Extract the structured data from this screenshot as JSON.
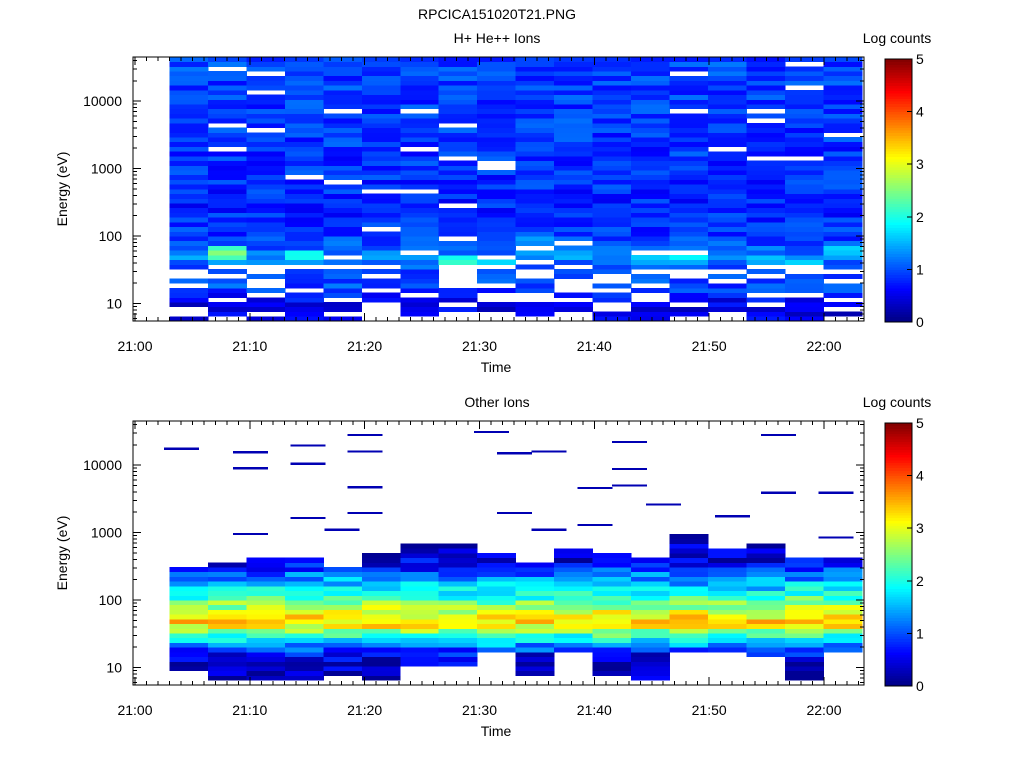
{
  "figure_title": "RPCICA151020T21.PNG",
  "chart_data": [
    {
      "type": "heatmap",
      "title": "H+ He++ Ions",
      "xlabel": "Time",
      "ylabel": "Energy (eV)",
      "x_ticks": [
        "21:00",
        "21:10",
        "21:20",
        "21:30",
        "21:40",
        "21:50",
        "22:00"
      ],
      "x_range": [
        "21:00",
        "22:03"
      ],
      "y_scale": "log",
      "y_ticks": [
        "10",
        "100",
        "1000",
        "10000"
      ],
      "y_range": [
        5.5,
        45000
      ],
      "colorbar": {
        "label": "Log counts",
        "ticks": [
          "0",
          "1",
          "2",
          "3",
          "4",
          "5"
        ],
        "range": [
          0,
          5
        ]
      },
      "grid": false,
      "seed": 7,
      "profile": [
        [
          5,
          0.5
        ],
        [
          10,
          0.5
        ],
        [
          15,
          0.9
        ],
        [
          20,
          1.0
        ],
        [
          25,
          1.0
        ],
        [
          35,
          1.05
        ],
        [
          45,
          1.3
        ],
        [
          60,
          1.15
        ],
        [
          80,
          1.0
        ],
        [
          120,
          0.85
        ],
        [
          300,
          0.8
        ],
        [
          1000,
          0.85
        ],
        [
          5000,
          0.9
        ],
        [
          45000,
          0.95
        ]
      ],
      "hotspots": [
        {
          "time": "21:08",
          "energy": 55,
          "level": 2.4
        },
        {
          "time": "21:14",
          "energy": 50,
          "level": 1.9
        },
        {
          "time": "21:30",
          "energy": 42,
          "level": 2.0
        },
        {
          "time": "21:36",
          "energy": 80,
          "level": 1.6
        },
        {
          "time": "21:46",
          "energy": 50,
          "level": 1.9
        },
        {
          "time": "21:56",
          "energy": 45,
          "level": 1.6
        },
        {
          "time": "22:01",
          "energy": 60,
          "level": 1.7
        }
      ],
      "gap_fraction": 0.05,
      "low_energy_gap_fraction": 0.35,
      "sparse": false
    },
    {
      "type": "heatmap",
      "title": "Other Ions",
      "xlabel": "Time",
      "ylabel": "Energy (eV)",
      "x_ticks": [
        "21:00",
        "21:10",
        "21:20",
        "21:30",
        "21:40",
        "21:50",
        "22:00"
      ],
      "x_range": [
        "21:00",
        "22:03"
      ],
      "y_scale": "log",
      "y_ticks": [
        "10",
        "100",
        "1000",
        "10000"
      ],
      "y_range": [
        5.5,
        45000
      ],
      "colorbar": {
        "label": "Log counts",
        "ticks": [
          "0",
          "1",
          "2",
          "3",
          "4",
          "5"
        ],
        "range": [
          0,
          5
        ]
      },
      "grid": false,
      "seed": 19,
      "profile": [
        [
          5,
          0.2
        ],
        [
          10,
          0.3
        ],
        [
          15,
          0.5
        ],
        [
          20,
          1.2
        ],
        [
          30,
          2.2
        ],
        [
          45,
          3.3
        ],
        [
          60,
          3.1
        ],
        [
          90,
          2.5
        ],
        [
          130,
          1.9
        ],
        [
          200,
          1.4
        ],
        [
          300,
          0.8
        ],
        [
          400,
          0.4
        ],
        [
          600,
          0.25
        ]
      ],
      "sparse_lines": [
        {
          "time": "21:04",
          "energy": 17500
        },
        {
          "time": "21:10",
          "energy": 15500
        },
        {
          "time": "21:10",
          "energy": 9000
        },
        {
          "time": "21:10",
          "energy": 950
        },
        {
          "time": "21:15",
          "energy": 19500
        },
        {
          "time": "21:15",
          "energy": 10500
        },
        {
          "time": "21:15",
          "energy": 1650
        },
        {
          "time": "21:18",
          "energy": 1100
        },
        {
          "time": "21:20",
          "energy": 28000
        },
        {
          "time": "21:20",
          "energy": 16000
        },
        {
          "time": "21:20",
          "energy": 4700
        },
        {
          "time": "21:20",
          "energy": 1950
        },
        {
          "time": "21:31",
          "energy": 31000
        },
        {
          "time": "21:33",
          "energy": 15000
        },
        {
          "time": "21:36",
          "energy": 16000
        },
        {
          "time": "21:33",
          "energy": 1950
        },
        {
          "time": "21:36",
          "energy": 1100
        },
        {
          "time": "21:40",
          "energy": 4600
        },
        {
          "time": "21:40",
          "energy": 1300
        },
        {
          "time": "21:43",
          "energy": 22000
        },
        {
          "time": "21:43",
          "energy": 8800
        },
        {
          "time": "21:43",
          "energy": 5000
        },
        {
          "time": "21:46",
          "energy": 2600
        },
        {
          "time": "21:52",
          "energy": 1750
        },
        {
          "time": "21:56",
          "energy": 28000
        },
        {
          "time": "21:56",
          "energy": 3900
        },
        {
          "time": "22:01",
          "energy": 3900
        },
        {
          "time": "22:01",
          "energy": 850
        }
      ],
      "top_edges": [
        300,
        350,
        420,
        420,
        300,
        480,
        650,
        650,
        480,
        380,
        560,
        500,
        440,
        900,
        600,
        700,
        420,
        450
      ],
      "bottom_edges": [
        9,
        6,
        6,
        6,
        8,
        6,
        10,
        10,
        16,
        8,
        16,
        8,
        7,
        16,
        16,
        14,
        6,
        16
      ],
      "gap_fraction": 0.0,
      "sparse": true
    }
  ]
}
